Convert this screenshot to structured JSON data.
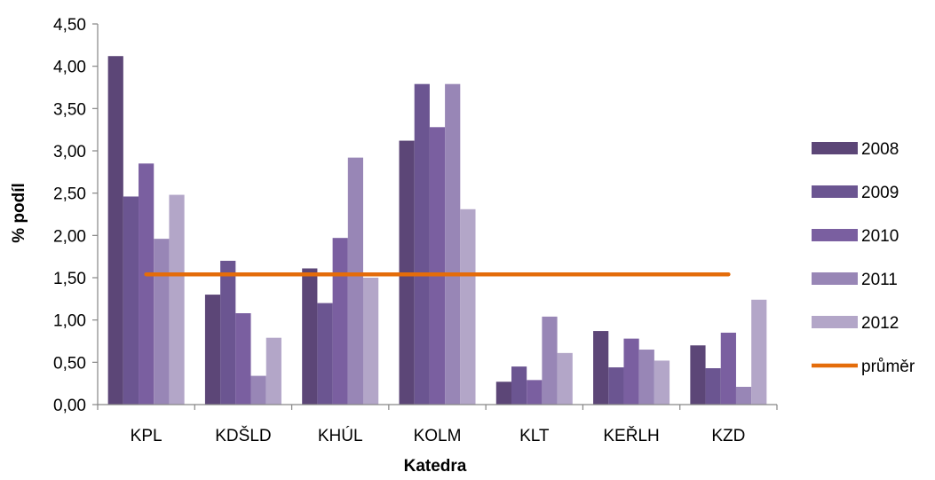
{
  "chart_data": {
    "type": "bar",
    "title": "",
    "xlabel": "Katedra",
    "ylabel": "% podíl",
    "ylim": [
      0,
      4.5
    ],
    "ytick_step": 0.5,
    "ytick_labels": [
      "0,00",
      "0,50",
      "1,00",
      "1,50",
      "2,00",
      "2,50",
      "3,00",
      "3,50",
      "4,00",
      "4,50"
    ],
    "categories": [
      "KPL",
      "KDŠLD",
      "KHÚL",
      "KOLM",
      "KLT",
      "KEŘLH",
      "KZD"
    ],
    "series": [
      {
        "name": "2008",
        "color": "#5C4677",
        "values": [
          4.12,
          1.3,
          1.61,
          3.12,
          0.27,
          0.87,
          0.7
        ]
      },
      {
        "name": "2009",
        "color": "#6B5591",
        "values": [
          2.46,
          1.7,
          1.2,
          3.79,
          0.45,
          0.44,
          0.43
        ]
      },
      {
        "name": "2010",
        "color": "#7A5FA0",
        "values": [
          2.85,
          1.08,
          1.97,
          3.28,
          0.29,
          0.78,
          0.85
        ]
      },
      {
        "name": "2011",
        "color": "#9886B6",
        "values": [
          1.96,
          0.34,
          2.92,
          3.79,
          1.04,
          0.65,
          0.21
        ]
      },
      {
        "name": "2012",
        "color": "#B3A6C8",
        "values": [
          2.48,
          0.79,
          1.5,
          2.31,
          0.61,
          0.52,
          1.24
        ]
      }
    ],
    "average": {
      "name": "průměr",
      "color": "#E46C0A",
      "value": 1.54
    },
    "grid": false,
    "legend_position": "right"
  }
}
